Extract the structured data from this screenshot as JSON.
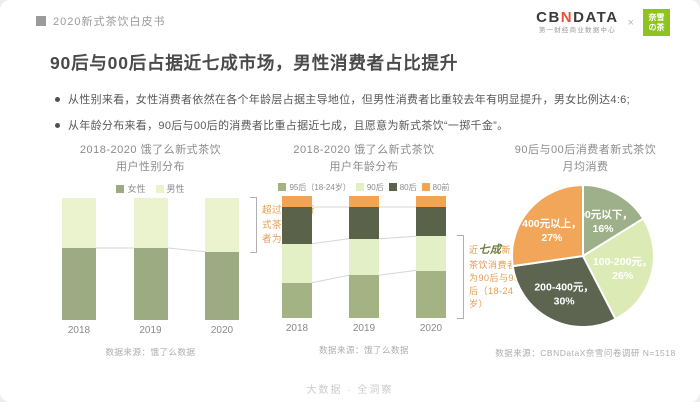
{
  "header": {
    "breadcrumb": "2020新式茶饮白皮书",
    "logo": {
      "cbn_cb": "CB",
      "cbn_n": "N",
      "cbn_data": "DATA",
      "cbn_sub": "第一财经商业数据中心",
      "cross": "×",
      "nayuki_line1": "奈雪",
      "nayuki_line2": "の茶"
    }
  },
  "title": "90后与00后占据近七成市场，男性消费者占比提升",
  "bullets": [
    "从性别来看，女性消费者依然在各个年龄层占据主导地位，但男性消费者比重较去年有明显提升，男女比例达4:6;",
    "从年龄分布来看，90后与00后的消费者比重占据近七成，且愿意为新式茶饮“一掷千金”。"
  ],
  "colors": {
    "sage_green": "#9cab81",
    "pale_green": "#ebf2ce",
    "age_95": "#a3b384",
    "age_90": "#e3efc4",
    "age_80s": "#5a624a",
    "age_pre80": "#f2a452",
    "annotation_orange": "#e69b50",
    "highlight_green": "#6f7d3f",
    "nayuki_green": "#8fc31f",
    "cbn_red": "#e94e37"
  },
  "chart_data": [
    {
      "id": "gender",
      "type": "bar",
      "stacked": true,
      "title_line1": "2018-2020 饿了么新式茶饮",
      "title_line2": "用户性别分布",
      "categories": [
        "2018",
        "2019",
        "2020"
      ],
      "series": [
        {
          "name": "女性",
          "color": "#9cab81",
          "values": [
            59,
            59,
            56
          ]
        },
        {
          "name": "男性",
          "color": "#ebf2ce",
          "values": [
            41,
            41,
            44
          ]
        }
      ],
      "ylim": [
        0,
        100
      ],
      "annotation": {
        "prefix": "超过",
        "highlight": "四成",
        "suffix": "新式茶饮消费者为男性",
        "anchor": "top",
        "bracket_series": [
          1
        ]
      },
      "source": "数据来源：饿了么数据"
    },
    {
      "id": "age",
      "type": "bar",
      "stacked": true,
      "title_line1": "2018-2020 饿了么新式茶饮",
      "title_line2": "用户年龄分布",
      "categories": [
        "2018",
        "2019",
        "2020"
      ],
      "series": [
        {
          "name": "95后（18-24岁）",
          "color": "#a3b384",
          "values": [
            29,
            35,
            39
          ]
        },
        {
          "name": "90后",
          "color": "#e3efc4",
          "values": [
            32,
            30,
            28
          ]
        },
        {
          "name": "80后",
          "color": "#5a624a",
          "values": [
            30,
            26,
            24
          ]
        },
        {
          "name": "80前",
          "color": "#f2a452",
          "values": [
            9,
            9,
            9
          ]
        }
      ],
      "ylim": [
        0,
        100
      ],
      "annotation": {
        "prefix": "近",
        "highlight": "七成",
        "suffix": "新式茶饮消费者为90后与95后（18-24岁）",
        "anchor": "bottom",
        "bracket_series": [
          0,
          1
        ]
      },
      "source": "数据来源：饿了么数据"
    },
    {
      "id": "spend",
      "type": "pie",
      "title_line1": "90后与00后消费者新式茶饮",
      "title_line2": "月均消费",
      "slices": [
        {
          "label": "100元以下",
          "value": 16,
          "color": "#9eb089"
        },
        {
          "label": "100-200元",
          "value": 26,
          "color": "#dcebb5"
        },
        {
          "label": "200-400元",
          "value": 30,
          "color": "#5d6551"
        },
        {
          "label": "400元以上",
          "value": 27,
          "color": "#f2a65a"
        }
      ],
      "source": "数据来源：CBNDataX奈雪问卷调研 N=1518"
    }
  ],
  "footer": "大数据 · 全洞察"
}
